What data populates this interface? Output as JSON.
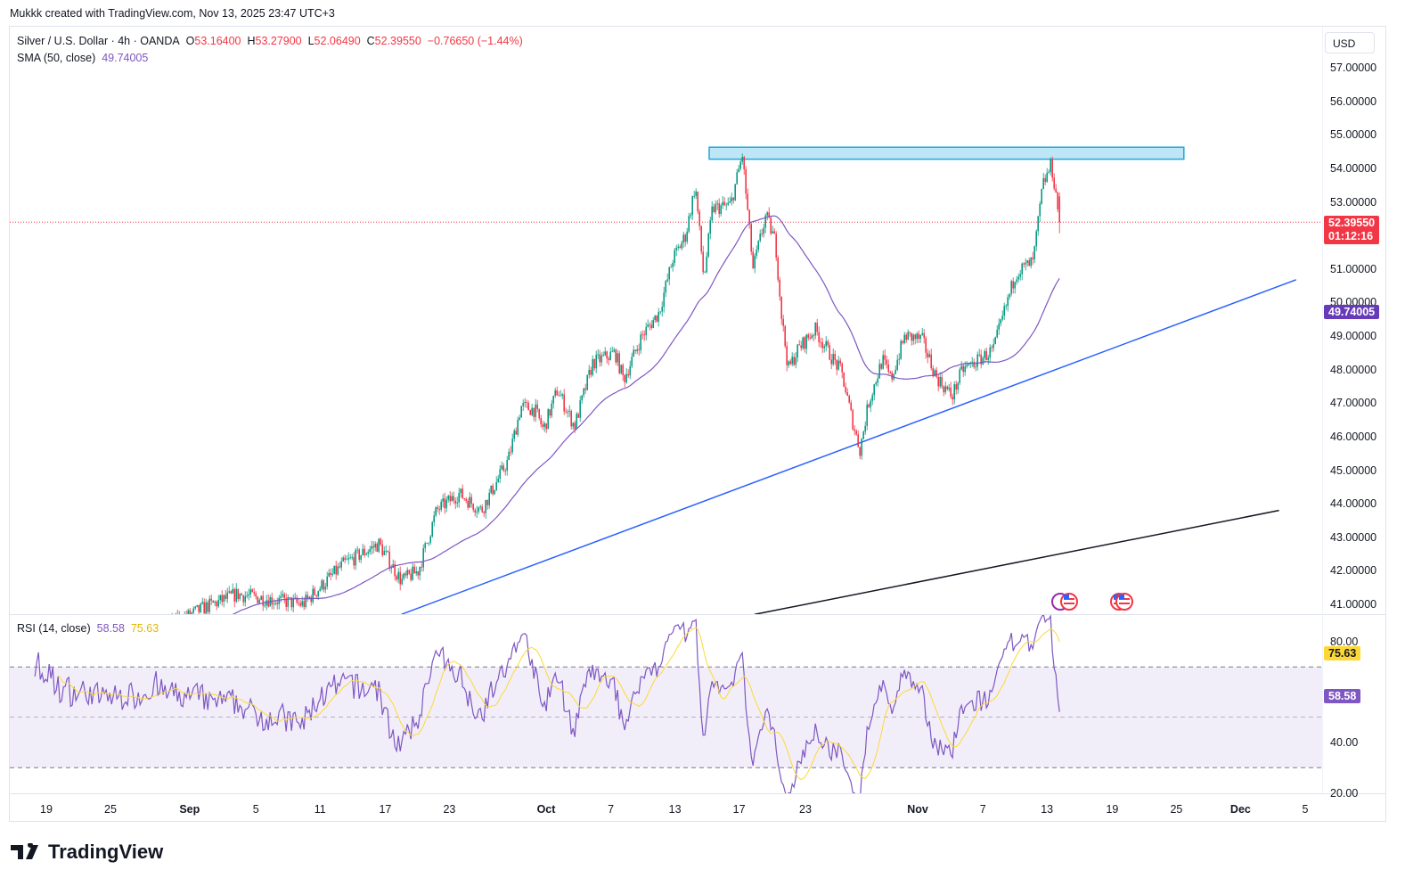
{
  "credit": "Mukkk created with TradingView.com, Nov 13, 2025 23:47 UTC+3",
  "legend": {
    "symbol": "Silver / U.S. Dollar · 4h · OANDA",
    "o_label": "O",
    "o": "53.16400",
    "h_label": "H",
    "h": "53.27900",
    "l_label": "L",
    "l": "52.06490",
    "c_label": "C",
    "c": "52.39550",
    "change": "−0.76650 (−1.44%)",
    "sma_label": "SMA (50, close)",
    "sma_value": "49.74005"
  },
  "rsi_legend": {
    "label": "RSI (14, close)",
    "rsi": "58.58",
    "ma": "75.63"
  },
  "axis": {
    "currency": "USD",
    "price_ticks": [
      "57.00000",
      "56.00000",
      "55.00000",
      "54.00000",
      "53.00000",
      "51.00000",
      "50.00000",
      "49.00000",
      "48.00000",
      "47.00000",
      "46.00000",
      "45.00000",
      "44.00000",
      "43.00000",
      "42.00000",
      "41.00000"
    ],
    "rsi_ticks": [
      "80.00",
      "40.00",
      "20.00"
    ]
  },
  "tags": {
    "price": "52.39550",
    "countdown": "01:12:16",
    "sma": "49.74005",
    "rsi_ma": "75.63",
    "rsi": "58.58"
  },
  "logo": "TradingView",
  "colors": {
    "up": "#089981",
    "down": "#f23645",
    "sma": "#7e57c2",
    "rsi": "#7e57c2",
    "rsi_ma": "#fdd835",
    "trend": "#2962ff",
    "zone": "#22a8d8"
  },
  "chart_data": {
    "type": "candlestick",
    "title": "Silver / U.S. Dollar · 4h · OANDA",
    "x_unit": "day index from Aug 19",
    "ylim": [
      40.7,
      58.2
    ],
    "time_ticks": [
      {
        "label": "19",
        "x": 0
      },
      {
        "label": "25",
        "x": 6
      },
      {
        "label": "Sep",
        "x": 13.4
      },
      {
        "label": "5",
        "x": 19.6
      },
      {
        "label": "11",
        "x": 25.6
      },
      {
        "label": "17",
        "x": 31.7
      },
      {
        "label": "23",
        "x": 37.7
      },
      {
        "label": "Oct",
        "x": 46.75
      },
      {
        "label": "7",
        "x": 52.8
      },
      {
        "label": "13",
        "x": 58.8
      },
      {
        "label": "17",
        "x": 64.8
      },
      {
        "label": "23",
        "x": 71
      },
      {
        "label": "Nov",
        "x": 81.5
      },
      {
        "label": "7",
        "x": 87.6
      },
      {
        "label": "13",
        "x": 93.6
      },
      {
        "label": "19",
        "x": 99.7
      },
      {
        "label": "25",
        "x": 105.7
      },
      {
        "label": "Dec",
        "x": 111.7
      },
      {
        "label": "5",
        "x": 117.75
      }
    ],
    "price_tick_values": [
      57,
      56,
      55,
      54,
      53,
      51,
      50,
      49,
      48,
      47,
      46,
      45,
      44,
      43,
      42,
      41
    ],
    "price_path": [
      [
        -3.4,
        38.0
      ],
      [
        14.8,
        40.9
      ],
      [
        17.8,
        41.3
      ],
      [
        24,
        41.0
      ],
      [
        27.8,
        42.2
      ],
      [
        31.1,
        42.8
      ],
      [
        33.2,
        41.7
      ],
      [
        34.8,
        42.0
      ],
      [
        36.5,
        43.8
      ],
      [
        38.6,
        44.3
      ],
      [
        40.7,
        43.8
      ],
      [
        43.2,
        45.3
      ],
      [
        44.4,
        46.9
      ],
      [
        45.7,
        46.8
      ],
      [
        46.5,
        46.2
      ],
      [
        47.8,
        47.4
      ],
      [
        49.4,
        46.3
      ],
      [
        51.1,
        48.2
      ],
      [
        53.2,
        48.5
      ],
      [
        54,
        47.7
      ],
      [
        55.7,
        49.0
      ],
      [
        57.3,
        49.7
      ],
      [
        58.6,
        51.3
      ],
      [
        59.8,
        52.0
      ],
      [
        60.7,
        53.5
      ],
      [
        61.5,
        50.7
      ],
      [
        62.3,
        52.8
      ],
      [
        64,
        52.9
      ],
      [
        65.1,
        54.4
      ],
      [
        66.1,
        51.0
      ],
      [
        67.3,
        52.6
      ],
      [
        68.2,
        51.8
      ],
      [
        68.8,
        49.5
      ],
      [
        69.4,
        48.0
      ],
      [
        70.3,
        48.6
      ],
      [
        71.9,
        49.2
      ],
      [
        73.2,
        48.5
      ],
      [
        74.4,
        47.9
      ],
      [
        75.3,
        46.6
      ],
      [
        76.1,
        45.6
      ],
      [
        76.9,
        47.0
      ],
      [
        78.2,
        48.3
      ],
      [
        79,
        47.7
      ],
      [
        80.3,
        49.0
      ],
      [
        81.9,
        48.9
      ],
      [
        83.2,
        47.8
      ],
      [
        84.7,
        47.2
      ],
      [
        85.7,
        48.0
      ],
      [
        87.3,
        48.3
      ],
      [
        88.6,
        48.6
      ],
      [
        89.4,
        49.5
      ],
      [
        90.7,
        50.9
      ],
      [
        92.3,
        51.2
      ],
      [
        93.2,
        53.5
      ],
      [
        94,
        54.1
      ],
      [
        94.4,
        53.3
      ],
      [
        94.8,
        52.4
      ]
    ],
    "resistance_zone": {
      "x": [
        62.0,
        106.4
      ],
      "price": [
        54.3,
        54.55
      ]
    },
    "trendlines": [
      {
        "name": "blue-support",
        "color": "#2962ff",
        "from": [
          33.2,
          40.7
        ],
        "to": [
          116.9,
          50.68
        ]
      },
      {
        "name": "black-support",
        "color": "#131722",
        "from": [
          66.25,
          40.7
        ],
        "to": [
          115.3,
          43.8
        ]
      }
    ],
    "last_close": 52.3955,
    "rsi_levels": [
      70,
      50,
      30
    ],
    "rsi_range": [
      20,
      85
    ]
  }
}
